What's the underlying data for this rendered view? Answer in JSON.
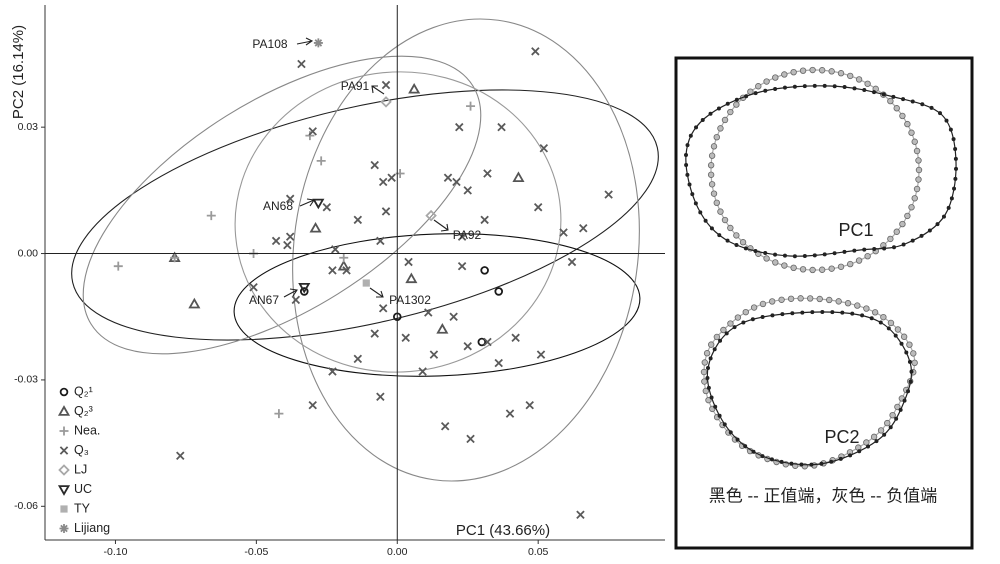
{
  "chart_data": {
    "type": "scatter",
    "x_label": "PC1 (43.66%)",
    "y_label": "PC2 (16.14%)",
    "xlim": [
      -0.125,
      0.095
    ],
    "ylim": [
      -0.068,
      0.059
    ],
    "xticks": [
      {
        "value": -0.1,
        "label": "-0.10"
      },
      -0.05,
      {
        "value": 0,
        "label": "0.00"
      },
      0.05
    ],
    "yticks": [
      -0.06,
      -0.03,
      {
        "value": 0,
        "label": "0.00"
      },
      0.03
    ],
    "zero_lines": true,
    "series": [
      {
        "name": "Q₂¹",
        "marker": "circle",
        "color": "#1a1a1a",
        "x": [
          -0.033,
          0.0,
          0.031,
          0.036,
          0.03
        ],
        "y": [
          -0.009,
          -0.015,
          -0.004,
          -0.009,
          -0.021
        ]
      },
      {
        "name": "Q₂³",
        "marker": "triangle",
        "color": "#555555",
        "x": [
          0.006,
          0.043,
          -0.029,
          -0.079,
          -0.072,
          -0.019,
          0.005,
          0.016
        ],
        "y": [
          0.039,
          0.018,
          0.006,
          -0.001,
          -0.012,
          -0.003,
          -0.006,
          -0.018
        ]
      },
      {
        "name": "Nea.",
        "marker": "plus",
        "color": "#9a9a9a",
        "x": [
          0.026,
          -0.031,
          -0.027,
          0.001,
          -0.066,
          -0.051,
          -0.099,
          -0.079,
          -0.019,
          -0.042
        ],
        "y": [
          0.035,
          0.028,
          0.022,
          0.019,
          0.009,
          0.0,
          -0.003,
          -0.001,
          -0.001,
          -0.038
        ]
      },
      {
        "name": "Q₃",
        "marker": "cross",
        "color": "#5a5a5a",
        "x": [
          0.049,
          -0.034,
          -0.004,
          0.022,
          0.037,
          -0.03,
          0.052,
          -0.008,
          -0.005,
          -0.002,
          0.018,
          0.021,
          0.032,
          0.025,
          -0.038,
          -0.025,
          0.031,
          0.05,
          0.075,
          -0.004,
          -0.014,
          0.059,
          0.066,
          -0.043,
          -0.038,
          -0.039,
          -0.006,
          0.023,
          -0.022,
          0.004,
          0.023,
          0.062,
          -0.036,
          -0.051,
          -0.023,
          -0.018,
          -0.005,
          0.003,
          0.011,
          0.02,
          -0.008,
          -0.023,
          -0.014,
          0.013,
          0.025,
          0.032,
          0.042,
          0.051,
          0.036,
          0.009,
          -0.006,
          -0.03,
          0.017,
          0.026,
          0.04,
          0.047,
          -0.077,
          0.065
        ],
        "y": [
          0.048,
          0.045,
          0.04,
          0.03,
          0.03,
          0.029,
          0.025,
          0.021,
          0.017,
          0.018,
          0.018,
          0.017,
          0.019,
          0.015,
          0.013,
          0.011,
          0.008,
          0.011,
          0.014,
          0.01,
          0.008,
          0.005,
          0.006,
          0.003,
          0.004,
          0.002,
          0.003,
          0.004,
          0.001,
          -0.002,
          -0.003,
          -0.002,
          -0.011,
          -0.008,
          -0.004,
          -0.004,
          -0.013,
          -0.02,
          -0.014,
          -0.015,
          -0.019,
          -0.028,
          -0.025,
          -0.024,
          -0.022,
          -0.021,
          -0.02,
          -0.024,
          -0.026,
          -0.028,
          -0.034,
          -0.036,
          -0.041,
          -0.044,
          -0.038,
          -0.036,
          -0.048,
          -0.062
        ]
      },
      {
        "name": "LJ",
        "marker": "diamond",
        "color": "#a8a8a8",
        "x": [
          -0.004,
          0.012
        ],
        "y": [
          0.036,
          0.009
        ]
      },
      {
        "name": "UC",
        "marker": "triangle-down",
        "color": "#2a2a2a",
        "x": [
          -0.028,
          -0.033
        ],
        "y": [
          0.012,
          -0.008
        ]
      },
      {
        "name": "TY",
        "marker": "square",
        "color": "#b0b0b0",
        "x": [
          -0.011
        ],
        "y": [
          -0.007
        ]
      },
      {
        "name": "Lijiang",
        "marker": "asterisk",
        "color": "#8a8a8a",
        "x": [
          -0.028
        ],
        "y": [
          0.05
        ]
      }
    ],
    "annotations": [
      "PA108",
      "PA91",
      "AN68",
      "PA92",
      "AN67",
      "PA1302"
    ]
  },
  "panel": {
    "labels": [
      "PC1",
      "PC2"
    ],
    "caption": "黑色 -- 正值端，灰色 -- 负值端"
  }
}
